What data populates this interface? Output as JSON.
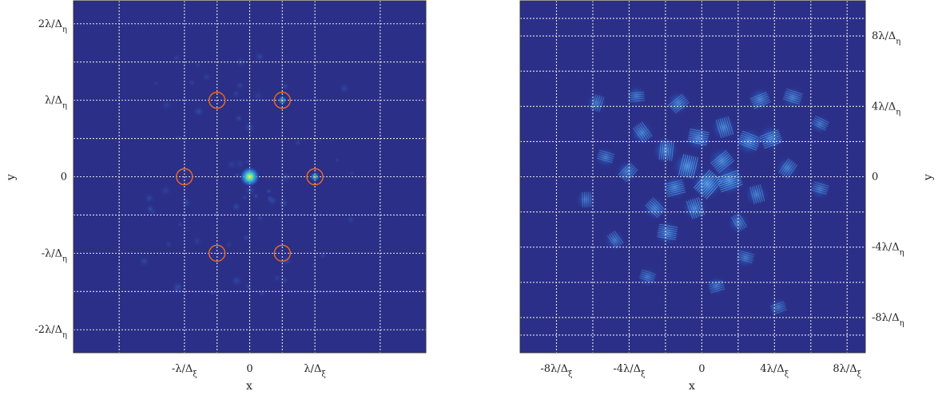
{
  "colors": {
    "background_field": "#2b2f87",
    "grid": "#e8e8e8",
    "marker_circle": "#f26a1b",
    "peak_core": "#f4f24a",
    "peak_mid": "#3fd3c0",
    "speckle": "#2a78e6",
    "speckle_bright": "#63b6f2"
  },
  "chart_data": [
    {
      "type": "heatmap",
      "panel": "left",
      "xlabel": "x",
      "ylabel": "y",
      "xlim": [
        -2.7,
        2.7
      ],
      "ylim": [
        -2.3,
        2.3
      ],
      "x_ticks": [
        {
          "value": -1,
          "label": "-λ/Δ",
          "sub": "ξ"
        },
        {
          "value": 0,
          "label": "0",
          "sub": ""
        },
        {
          "value": 1,
          "label": "λ/Δ",
          "sub": "ξ"
        }
      ],
      "y_ticks": [
        {
          "value": 2,
          "label": "2λ/Δ",
          "sub": "η"
        },
        {
          "value": 1,
          "label": "λ/Δ",
          "sub": "η"
        },
        {
          "value": 0,
          "label": "0",
          "sub": ""
        },
        {
          "value": -1,
          "label": "-λ/Δ",
          "sub": "η"
        },
        {
          "value": -2,
          "label": "-2λ/Δ",
          "sub": "η"
        }
      ],
      "x_gridlines": [
        -2,
        -1,
        -0.5,
        0,
        0.5,
        1,
        2
      ],
      "y_gridlines": [
        -2,
        -1.5,
        -1,
        -0.5,
        0,
        0.5,
        1,
        1.5,
        2
      ],
      "grid": true,
      "peaks": [
        {
          "x": 0,
          "y": 0,
          "intensity": 1.0
        },
        {
          "x": 1,
          "y": 0,
          "intensity": 0.25
        },
        {
          "x": 0.5,
          "y": 1,
          "intensity": 0.2
        }
      ],
      "marked_points": [
        {
          "x": -1,
          "y": 0
        },
        {
          "x": 1,
          "y": 0
        },
        {
          "x": -0.5,
          "y": 1
        },
        {
          "x": 0.5,
          "y": 1
        },
        {
          "x": -0.5,
          "y": -1
        },
        {
          "x": 0.5,
          "y": -1
        }
      ]
    },
    {
      "type": "heatmap",
      "panel": "right",
      "xlabel": "x",
      "ylabel": "y",
      "xlim": [
        -10,
        9
      ],
      "ylim": [
        -10,
        10
      ],
      "x_ticks": [
        {
          "value": -8,
          "label": "-8λ/Δ",
          "sub": "ξ"
        },
        {
          "value": -4,
          "label": "-4λ/Δ",
          "sub": "ξ"
        },
        {
          "value": 0,
          "label": "0",
          "sub": ""
        },
        {
          "value": 4,
          "label": "4λ/Δ",
          "sub": "ξ"
        },
        {
          "value": 8,
          "label": "8λ/Δ",
          "sub": "ξ"
        }
      ],
      "y_ticks": [
        {
          "value": 8,
          "label": "8λ/Δ",
          "sub": "η"
        },
        {
          "value": 4,
          "label": "4λ/Δ",
          "sub": "η"
        },
        {
          "value": 0,
          "label": "0",
          "sub": ""
        },
        {
          "value": -4,
          "label": "-4λ/Δ",
          "sub": "η"
        },
        {
          "value": -8,
          "label": "-8λ/Δ",
          "sub": "η"
        }
      ],
      "x_gridlines": [
        -8,
        -6,
        -4,
        -2,
        0,
        2,
        4,
        6,
        8
      ],
      "y_gridlines": [
        -9,
        -8,
        -6,
        -4,
        -2,
        0,
        2,
        4,
        6,
        8,
        9
      ],
      "grid": true,
      "speckle_blobs": [
        {
          "x": 0.3,
          "y": -0.4,
          "i": 0.85
        },
        {
          "x": -0.8,
          "y": 0.6,
          "i": 0.7
        },
        {
          "x": 1.5,
          "y": -0.2,
          "i": 0.75
        },
        {
          "x": -2.0,
          "y": 1.5,
          "i": 0.55
        },
        {
          "x": 2.6,
          "y": 2.0,
          "i": 0.6
        },
        {
          "x": 3.8,
          "y": 2.2,
          "i": 0.55
        },
        {
          "x": -2.6,
          "y": -1.8,
          "i": 0.45
        },
        {
          "x": -1.9,
          "y": -3.2,
          "i": 0.5
        },
        {
          "x": 1.2,
          "y": 2.8,
          "i": 0.5
        },
        {
          "x": -3.3,
          "y": 2.5,
          "i": 0.45
        },
        {
          "x": -1.3,
          "y": 4.2,
          "i": 0.45
        },
        {
          "x": 3.2,
          "y": 4.4,
          "i": 0.45
        },
        {
          "x": 5.0,
          "y": 4.5,
          "i": 0.4
        },
        {
          "x": -4.1,
          "y": 0.3,
          "i": 0.4
        },
        {
          "x": 4.7,
          "y": 0.5,
          "i": 0.4
        },
        {
          "x": -0.2,
          "y": 2.2,
          "i": 0.55
        },
        {
          "x": 2.0,
          "y": -2.6,
          "i": 0.35
        },
        {
          "x": -4.8,
          "y": -3.6,
          "i": 0.3
        },
        {
          "x": -5.8,
          "y": 4.2,
          "i": 0.3
        },
        {
          "x": -3.6,
          "y": 4.6,
          "i": 0.3
        },
        {
          "x": -5.3,
          "y": 1.1,
          "i": 0.3
        },
        {
          "x": 6.5,
          "y": 3.0,
          "i": 0.28
        },
        {
          "x": 6.5,
          "y": -0.7,
          "i": 0.3
        },
        {
          "x": -6.4,
          "y": -1.3,
          "i": 0.25
        },
        {
          "x": -3.0,
          "y": -5.7,
          "i": 0.25
        },
        {
          "x": 2.4,
          "y": -4.6,
          "i": 0.3
        },
        {
          "x": 0.8,
          "y": -6.2,
          "i": 0.25
        },
        {
          "x": 4.2,
          "y": -7.4,
          "i": 0.22
        },
        {
          "x": -0.4,
          "y": -1.8,
          "i": 0.5
        },
        {
          "x": 1.1,
          "y": 0.9,
          "i": 0.6
        },
        {
          "x": -1.5,
          "y": -0.6,
          "i": 0.5
        },
        {
          "x": 3.0,
          "y": -1.0,
          "i": 0.4
        }
      ]
    }
  ]
}
